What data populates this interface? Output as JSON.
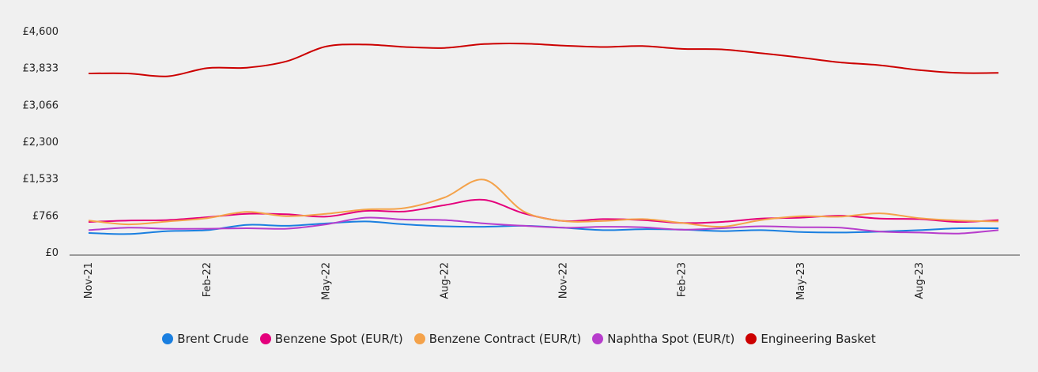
{
  "chart_data": {
    "type": "line",
    "x": [
      "Nov-21",
      "Dec-21",
      "Jan-22",
      "Feb-22",
      "Mar-22",
      "Apr-22",
      "May-22",
      "Jun-22",
      "Jul-22",
      "Aug-22",
      "Sep-22",
      "Oct-22",
      "Nov-22",
      "Dec-22",
      "Jan-23",
      "Feb-23",
      "Mar-23",
      "Apr-23",
      "May-23",
      "Jun-23",
      "Jul-23",
      "Aug-23",
      "Sep-23",
      "Oct-23"
    ],
    "x_tick_labels": [
      "Nov-21",
      "Feb-22",
      "May-22",
      "Aug-22",
      "Nov-22",
      "Feb-23",
      "May-23",
      "Aug-23"
    ],
    "y_tick_labels": [
      "£0",
      "£766",
      "£1,533",
      "£2,300",
      "£3,066",
      "£3,833",
      "£4,600"
    ],
    "ylim": [
      0,
      4600
    ],
    "grid": false,
    "legend_position": "bottom",
    "series": [
      {
        "name": "Brent Crude",
        "color": "#1a7fe0",
        "values": [
          410,
          390,
          450,
          470,
          580,
          560,
          610,
          650,
          590,
          550,
          540,
          560,
          520,
          470,
          490,
          480,
          450,
          470,
          430,
          420,
          440,
          470,
          510,
          510
        ]
      },
      {
        "name": "Benzene Spot (EUR/t)",
        "color": "#e4007c",
        "values": [
          640,
          670,
          680,
          740,
          810,
          800,
          750,
          870,
          860,
          990,
          1100,
          820,
          660,
          700,
          680,
          620,
          640,
          710,
          730,
          770,
          710,
          700,
          640,
          680
        ]
      },
      {
        "name": "Benzene Contract (EUR/t)",
        "color": "#f4a24a",
        "values": [
          670,
          590,
          650,
          720,
          850,
          760,
          810,
          900,
          930,
          1150,
          1520,
          860,
          660,
          660,
          700,
          620,
          540,
          680,
          760,
          750,
          820,
          720,
          670,
          650
        ]
      },
      {
        "name": "Naphtha Spot (EUR/t)",
        "color": "#b73dcc",
        "values": [
          470,
          520,
          500,
          500,
          510,
          500,
          590,
          730,
          690,
          680,
          610,
          560,
          520,
          540,
          530,
          480,
          510,
          550,
          530,
          520,
          440,
          420,
          400,
          470
        ]
      },
      {
        "name": "Engineering Basket",
        "color": "#cc0000",
        "values": [
          3730,
          3730,
          3670,
          3840,
          3850,
          3980,
          4290,
          4330,
          4280,
          4260,
          4340,
          4350,
          4310,
          4280,
          4300,
          4240,
          4230,
          4150,
          4060,
          3960,
          3900,
          3800,
          3740,
          3740
        ]
      }
    ]
  }
}
